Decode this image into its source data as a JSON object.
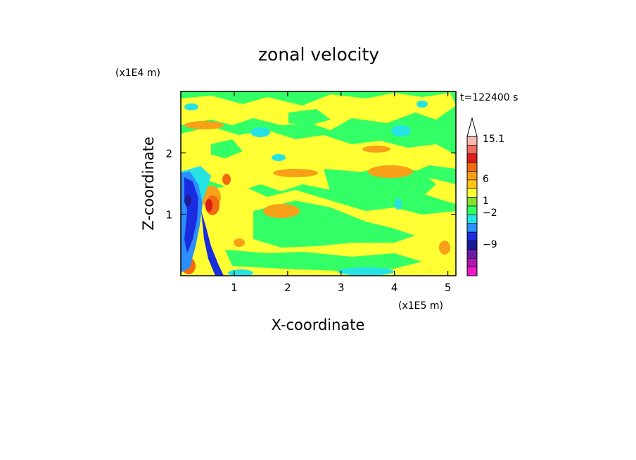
{
  "chart_data": {
    "type": "heatmap",
    "title": "zonal velocity",
    "xlabel": "X-coordinate",
    "ylabel": "Z-coordinate",
    "x_unit": "(x1E5 m)",
    "y_unit": "(x1E4 m)",
    "time_label": "t=122400 s",
    "xlim": [
      0,
      5.15
    ],
    "ylim": [
      0,
      3.0
    ],
    "x_ticks": [
      1,
      2,
      3,
      4,
      5
    ],
    "y_ticks": [
      1,
      2
    ],
    "colorbar": {
      "labels": [
        "15.1",
        "6",
        "1",
        "−2",
        "−9"
      ],
      "colors": [
        "#f5b7b1",
        "#ef6b5e",
        "#dd1c1c",
        "#f26b0f",
        "#f7a018",
        "#ffc31a",
        "#ffff33",
        "#80e033",
        "#33ff66",
        "#26e3e3",
        "#2b8fff",
        "#1a2ce0",
        "#1c1a96",
        "#6b1ba8",
        "#b015b0",
        "#ef18c9"
      ],
      "top_arrow": true
    },
    "regions": [
      {
        "level": "yellow",
        "x": 1.6,
        "z": 2.55
      },
      {
        "level": "green",
        "x": 2.7,
        "z": 2.1
      },
      {
        "level": "orange",
        "x": 0.35,
        "z": 1.2
      },
      {
        "level": "dark-blue",
        "x": 0.2,
        "z": 1.1
      },
      {
        "level": "green",
        "x": 4.0,
        "z": 0.8
      },
      {
        "level": "yellow",
        "x": 1.4,
        "z": 1.5
      }
    ]
  }
}
